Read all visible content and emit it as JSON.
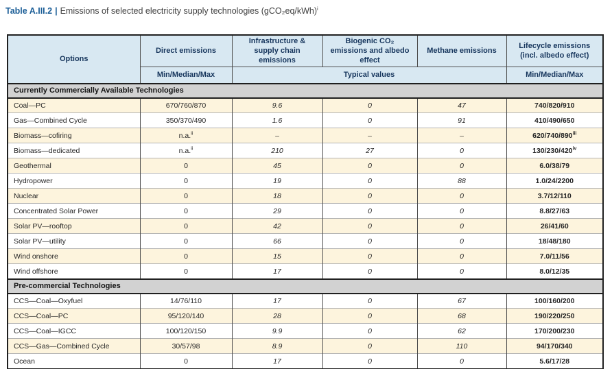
{
  "title": {
    "label": "Table A.III.2",
    "separator": "|",
    "text": "Emissions of selected electricity supply technologies (gCO₂eq/kWh)",
    "superscript": "i"
  },
  "header": {
    "options": "Options",
    "groups": [
      "Direct emissions",
      "Infrastructure & supply chain emissions",
      "Biogenic CO₂ emissions and albedo effect",
      "Methane emissions",
      "Lifecycle emissions (incl. albedo effect)"
    ],
    "sub_direct": "Min/Median/Max",
    "sub_typical": "Typical values",
    "sub_lifecycle": "Min/Median/Max"
  },
  "table": {
    "sections": [
      {
        "name": "Currently Commercially Available Technologies",
        "rows": [
          {
            "option": "Coal—PC",
            "direct": "670/760/870",
            "infra": "9.6",
            "biogenic": "0",
            "methane": "47",
            "lifecycle": "740/820/910"
          },
          {
            "option": "Gas—Combined Cycle",
            "direct": "350/370/490",
            "infra": "1.6",
            "biogenic": "0",
            "methane": "91",
            "lifecycle": "410/490/650"
          },
          {
            "option": "Biomass—cofiring",
            "direct": "n.a.",
            "direct_sup": "ii",
            "infra": "–",
            "biogenic": "–",
            "methane": "–",
            "lifecycle": "620/740/890",
            "lifecycle_sup": "iii"
          },
          {
            "option": "Biomass—dedicated",
            "direct": "n.a.",
            "direct_sup": "ii",
            "infra": "210",
            "biogenic": "27",
            "methane": "0",
            "lifecycle": "130/230/420",
            "lifecycle_sup": "iv"
          },
          {
            "option": "Geothermal",
            "direct": "0",
            "infra": "45",
            "biogenic": "0",
            "methane": "0",
            "lifecycle": "6.0/38/79"
          },
          {
            "option": "Hydropower",
            "direct": "0",
            "infra": "19",
            "biogenic": "0",
            "methane": "88",
            "lifecycle": "1.0/24/2200"
          },
          {
            "option": "Nuclear",
            "direct": "0",
            "infra": "18",
            "biogenic": "0",
            "methane": "0",
            "lifecycle": "3.7/12/110"
          },
          {
            "option": "Concentrated Solar Power",
            "direct": "0",
            "infra": "29",
            "biogenic": "0",
            "methane": "0",
            "lifecycle": "8.8/27/63"
          },
          {
            "option": "Solar PV—rooftop",
            "direct": "0",
            "infra": "42",
            "biogenic": "0",
            "methane": "0",
            "lifecycle": "26/41/60"
          },
          {
            "option": "Solar PV—utility",
            "direct": "0",
            "infra": "66",
            "biogenic": "0",
            "methane": "0",
            "lifecycle": "18/48/180"
          },
          {
            "option": "Wind onshore",
            "direct": "0",
            "infra": "15",
            "biogenic": "0",
            "methane": "0",
            "lifecycle": "7.0/11/56"
          },
          {
            "option": "Wind offshore",
            "direct": "0",
            "infra": "17",
            "biogenic": "0",
            "methane": "0",
            "lifecycle": "8.0/12/35"
          }
        ]
      },
      {
        "name": "Pre-commercial Technologies",
        "rows": [
          {
            "option": "CCS—Coal—Oxyfuel",
            "direct": "14/76/110",
            "infra": "17",
            "biogenic": "0",
            "methane": "67",
            "lifecycle": "100/160/200"
          },
          {
            "option": "CCS—Coal—PC",
            "direct": "95/120/140",
            "infra": "28",
            "biogenic": "0",
            "methane": "68",
            "lifecycle": "190/220/250"
          },
          {
            "option": "CCS—Coal—IGCC",
            "direct": "100/120/150",
            "infra": "9.9",
            "biogenic": "0",
            "methane": "62",
            "lifecycle": "170/200/230"
          },
          {
            "option": "CCS—Gas—Combined Cycle",
            "direct": "30/57/98",
            "infra": "8.9",
            "biogenic": "0",
            "methane": "110",
            "lifecycle": "94/170/340"
          },
          {
            "option": "Ocean",
            "direct": "0",
            "infra": "17",
            "biogenic": "0",
            "methane": "0",
            "lifecycle": "5.6/17/28"
          }
        ]
      }
    ]
  },
  "colors": {
    "header_bg": "#d8e8f2",
    "header_text": "#17365d",
    "section_bg": "#d2d2d2",
    "row_cream": "#fdf4dd",
    "row_white": "#ffffff",
    "title_accent": "#1b5e97",
    "border_dark": "#1f1f1f",
    "border_light": "#b3b3b3"
  }
}
